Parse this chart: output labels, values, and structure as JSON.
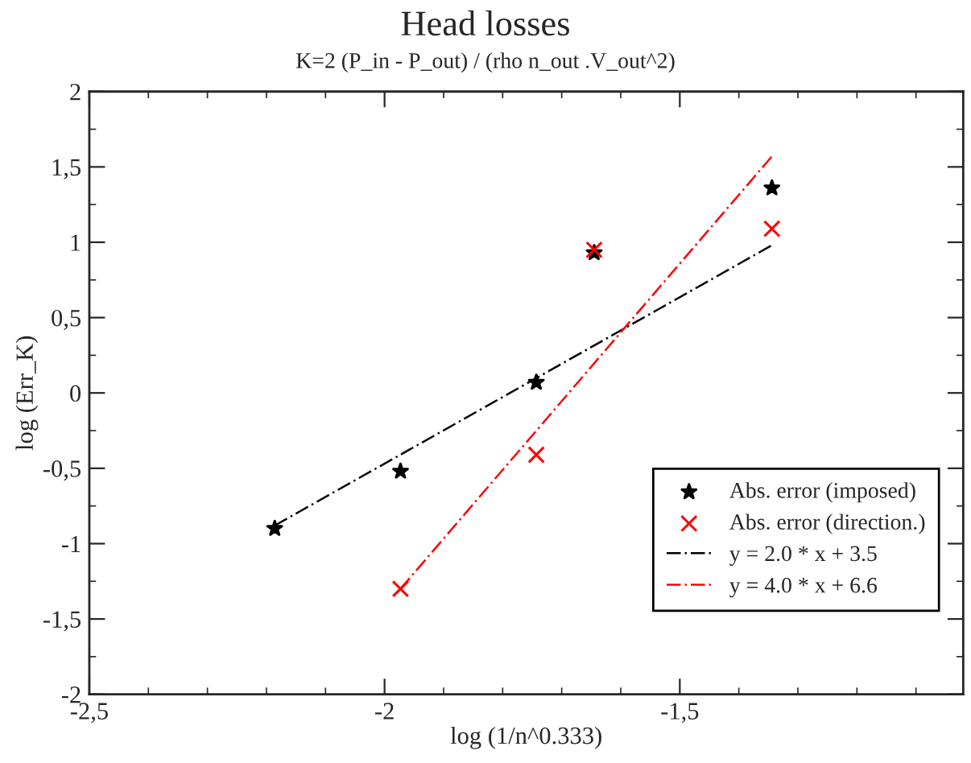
{
  "chart_data": {
    "type": "scatter",
    "title": "Head losses",
    "subtitle": "K=2 (P_in - P_out) / (rho n_out .V_out^2)",
    "xlabel": "log (1/n^0.333)",
    "ylabel": "log (Err_K)",
    "series": [
      {
        "name": "Abs. error (imposed)",
        "color": "#000000",
        "marker": "star",
        "x": [
          -2.186,
          -1.973,
          -1.743,
          -1.645,
          -1.344
        ],
        "values": [
          -0.9,
          -0.52,
          0.07,
          0.93,
          1.36
        ]
      },
      {
        "name": "Abs. error (direction.)",
        "color": "#ff0000",
        "marker": "cross",
        "x": [
          -1.973,
          -1.743,
          -1.645,
          -1.344
        ],
        "values": [
          -1.3,
          -0.41,
          0.95,
          1.09
        ]
      },
      {
        "name": "y = 2.0 * x + 3.5",
        "type": "line",
        "color": "#000000",
        "line_style": "dashed",
        "x": [
          -2.186,
          -1.344
        ],
        "values": [
          -0.88,
          0.98
        ]
      },
      {
        "name": "y = 4.0 * x + 6.6",
        "type": "line",
        "color": "#ff0000",
        "line_style": "dashed",
        "x": [
          -1.973,
          -1.344
        ],
        "values": [
          -1.3,
          1.57
        ]
      }
    ],
    "xlim": [
      -2.5,
      -1.02
    ],
    "xticks": [
      {
        "value": -2.5,
        "label": "-2,5"
      },
      -2,
      {
        "value": -1.5,
        "label": "-1,5"
      }
    ],
    "ylim": [
      -2,
      2
    ],
    "yticks": [
      -2,
      {
        "value": -1.5,
        "label": "-1,5"
      },
      -1,
      {
        "value": -0.5,
        "label": "-0,5"
      },
      0,
      {
        "value": 0.5,
        "label": "0,5"
      },
      1,
      {
        "value": 1.5,
        "label": "1,5"
      },
      2
    ],
    "grid": false,
    "legend": "bottom right"
  }
}
